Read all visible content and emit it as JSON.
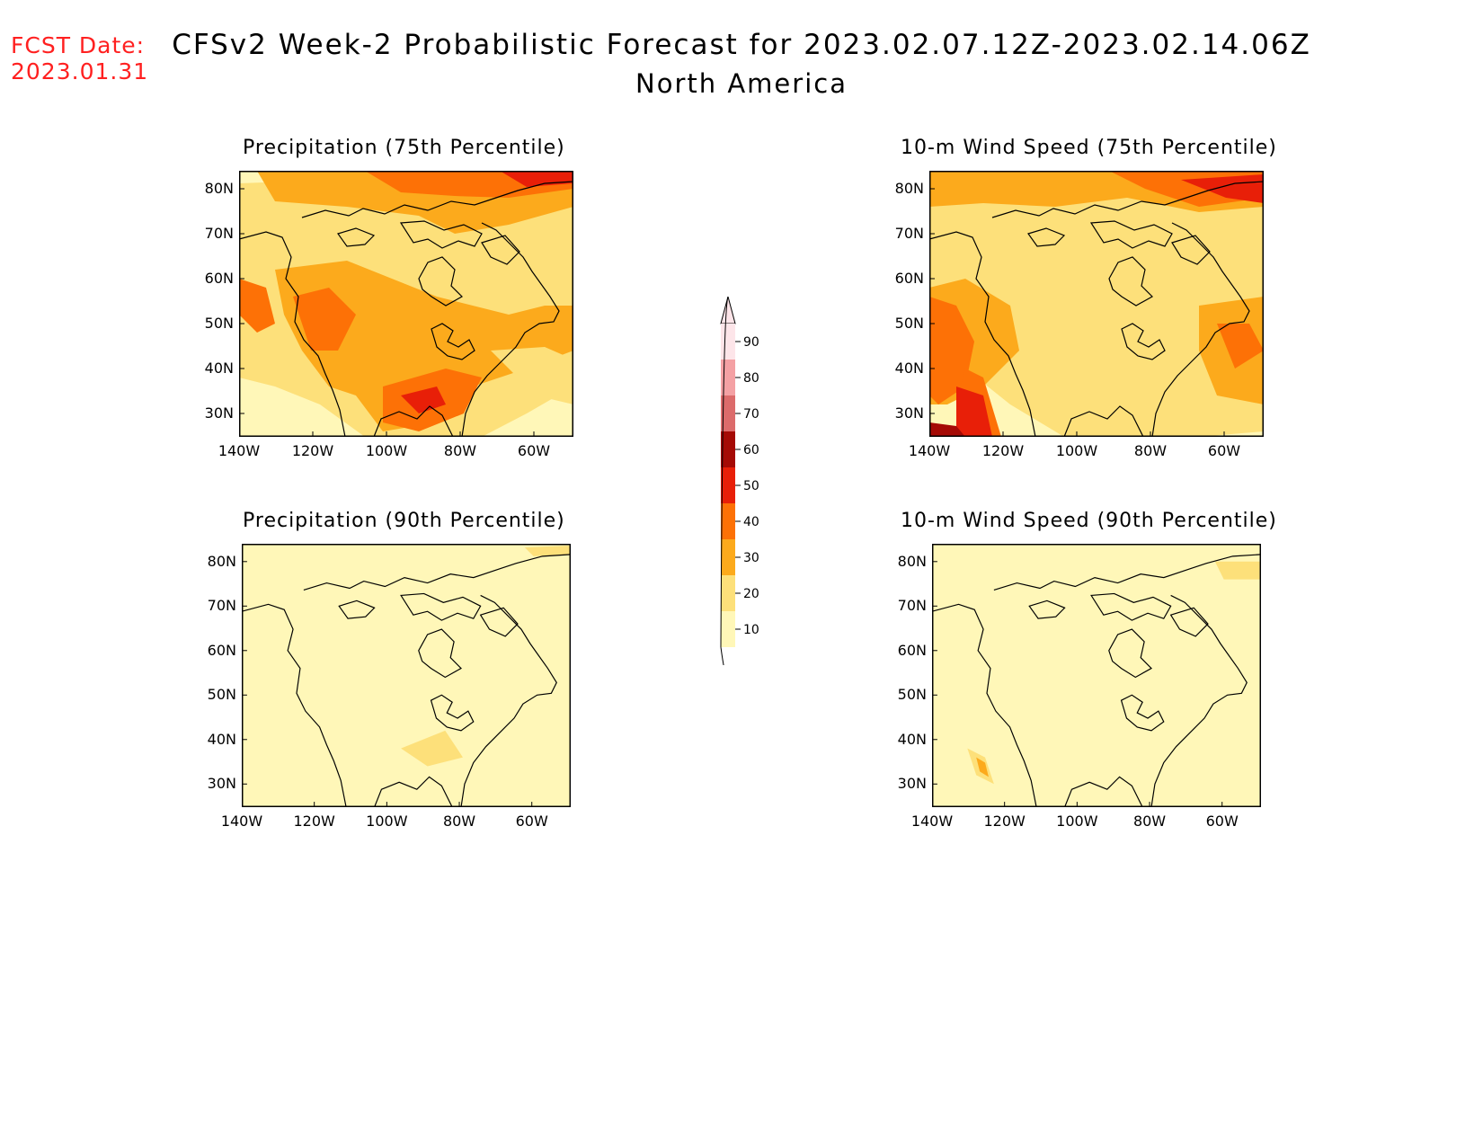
{
  "header": {
    "fcst_label": "FCST Date:",
    "fcst_date": "2023.01.31",
    "title": "CFSv2 Week-2 Probabilistic Forecast for 2023.02.07.12Z-2023.02.14.06Z",
    "subtitle": "North America"
  },
  "axes": {
    "lat_labels": [
      "80N",
      "70N",
      "60N",
      "50N",
      "40N",
      "30N"
    ],
    "lon_labels": [
      "140W",
      "120W",
      "100W",
      "80W",
      "60W"
    ]
  },
  "panels": [
    {
      "title": "Precipitation (75th Percentile)"
    },
    {
      "title": "10-m Wind Speed (75th Percentile)"
    },
    {
      "title": "Precipitation (90th Percentile)"
    },
    {
      "title": "10-m Wind Speed (90th Percentile)"
    }
  ],
  "legend": {
    "levels": [
      "90",
      "80",
      "70",
      "60",
      "50",
      "40",
      "30",
      "20",
      "10"
    ],
    "colors": {
      "10": "#fff7b8",
      "20": "#fde07a",
      "30": "#fcaa1c",
      "40": "#fd7106",
      "50": "#e81f08",
      "60": "#a50a05",
      "70": "#dc6b6b",
      "80": "#f4a1a4",
      "90": "#fde5e9"
    }
  }
}
